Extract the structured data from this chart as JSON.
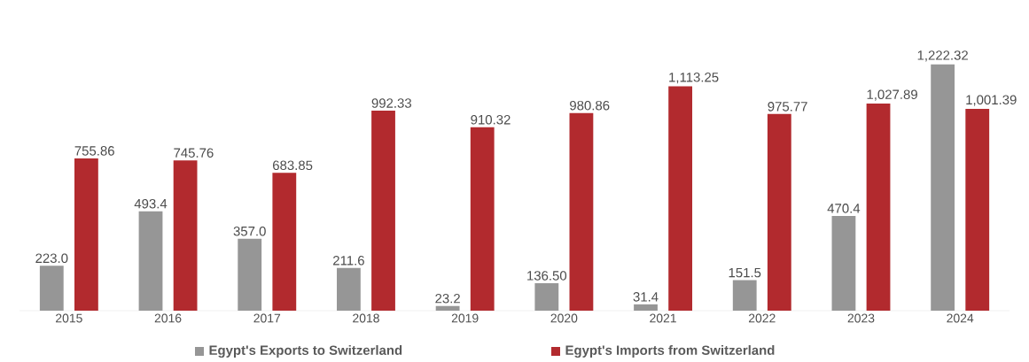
{
  "chart_data": {
    "type": "bar",
    "categories": [
      "2015",
      "2016",
      "2017",
      "2018",
      "2019",
      "2020",
      "2021",
      "2022",
      "2023",
      "2024"
    ],
    "series": [
      {
        "name": "Egypt's Exports to Switzerland",
        "color": "#969696",
        "values": [
          223.0,
          493.4,
          357.0,
          211.6,
          23.2,
          136.5,
          31.4,
          151.5,
          470.4,
          1222.32
        ],
        "value_labels": [
          "223.0",
          "493.4",
          "357.0",
          "211.6",
          "23.2",
          "136.50",
          "31.4",
          "151.5",
          "470.4",
          "1,222.32"
        ]
      },
      {
        "name": "Egypt's Imports from Switzerland",
        "color": "#b22a2e",
        "values": [
          755.86,
          745.76,
          683.85,
          992.33,
          910.32,
          980.86,
          1113.25,
          975.77,
          1027.89,
          1001.39
        ],
        "value_labels": [
          "755.86",
          "745.76",
          "683.85",
          "992.33",
          "910.32",
          "980.86",
          "1,113.25",
          "975.77",
          "1,027.89",
          "1,001.39"
        ]
      }
    ],
    "legend": "bottom"
  }
}
